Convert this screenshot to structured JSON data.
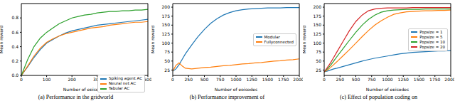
{
  "chart_data": [
    {
      "type": "line",
      "caption": "(a) Performance in the gridworld",
      "x_label": "Number of episodes",
      "y_label": "Mean reward",
      "x": [
        0,
        25,
        50,
        75,
        100,
        125,
        150,
        175,
        200,
        225,
        250,
        275,
        300,
        325,
        350,
        375,
        400,
        425,
        450,
        475,
        500
      ],
      "xlim": [
        0,
        500
      ],
      "xticks": [
        0,
        100,
        200,
        300,
        400,
        500
      ],
      "ylim": [
        0,
        1.0
      ],
      "yticks": [
        {
          "value": 0,
          "label": "0.0"
        },
        0.2,
        0.4,
        0.6,
        0.8
      ],
      "legend": "lower right",
      "series": [
        {
          "name": "Spiking agent AC",
          "color": "#1f77b4",
          "values": [
            0,
            0.12,
            0.25,
            0.36,
            0.45,
            0.5,
            0.55,
            0.59,
            0.62,
            0.64,
            0.66,
            0.68,
            0.7,
            0.71,
            0.72,
            0.73,
            0.74,
            0.75,
            0.76,
            0.77,
            0.78
          ]
        },
        {
          "name": "Neural net AC",
          "color": "#ff7f0e",
          "values": [
            0,
            0.13,
            0.27,
            0.38,
            0.46,
            0.51,
            0.55,
            0.58,
            0.6,
            0.62,
            0.64,
            0.66,
            0.67,
            0.68,
            0.7,
            0.71,
            0.72,
            0.73,
            0.74,
            0.74,
            0.75
          ]
        },
        {
          "name": "Tabular AC",
          "color": "#2ca02c",
          "values": [
            0,
            0.22,
            0.4,
            0.52,
            0.6,
            0.66,
            0.72,
            0.76,
            0.8,
            0.82,
            0.84,
            0.85,
            0.87,
            0.88,
            0.89,
            0.89,
            0.9,
            0.9,
            0.91,
            0.91,
            0.92
          ]
        }
      ]
    },
    {
      "type": "line",
      "caption": "(b) Performance improvement of",
      "x_label": "Number of episodes",
      "y_label": "Mean reward",
      "x": [
        0,
        50,
        100,
        150,
        200,
        300,
        400,
        500,
        600,
        700,
        800,
        900,
        1000,
        1100,
        1200,
        1300,
        1400,
        1500,
        1600,
        1700,
        1800,
        1900,
        2000
      ],
      "xlim": [
        0,
        2000
      ],
      "xticks": [
        0,
        250,
        500,
        750,
        1000,
        1250,
        1500,
        1750,
        2000
      ],
      "ylim": [
        10,
        210
      ],
      "yticks": [
        25,
        50,
        75,
        100,
        125,
        150,
        175,
        200
      ],
      "legend": "center right",
      "series": [
        {
          "name": "Modular",
          "color": "#1f77b4",
          "values": [
            22,
            28,
            40,
            55,
            70,
            95,
            118,
            138,
            155,
            168,
            178,
            185,
            190,
            193,
            195,
            196,
            197,
            198,
            198,
            198,
            199,
            199,
            199
          ]
        },
        {
          "name": "Fullyconnected",
          "color": "#ff7f0e",
          "values": [
            22,
            38,
            45,
            36,
            30,
            28,
            30,
            32,
            33,
            35,
            37,
            38,
            40,
            42,
            43,
            45,
            46,
            48,
            50,
            51,
            53,
            54,
            56
          ]
        }
      ]
    },
    {
      "type": "line",
      "caption": "(c) Effect of population coding on",
      "x_label": "Number of episodes",
      "y_label": "Mean reward",
      "x": [
        0,
        50,
        100,
        150,
        200,
        300,
        400,
        500,
        600,
        700,
        800,
        900,
        1000,
        1100,
        1200,
        1300,
        1400,
        1500,
        1600,
        1700,
        1800,
        1900,
        2000
      ],
      "xlim": [
        0,
        2000
      ],
      "xticks": [
        0,
        250,
        500,
        750,
        1000,
        1250,
        1500,
        1750,
        2000
      ],
      "ylim": [
        10,
        210
      ],
      "yticks": [
        25,
        50,
        75,
        100,
        125,
        150,
        175,
        200
      ],
      "legend": "center right",
      "series": [
        {
          "name": "Popsize = 1",
          "color": "#1f77b4",
          "values": [
            20,
            22,
            25,
            28,
            30,
            35,
            40,
            45,
            50,
            54,
            58,
            61,
            64,
            67,
            70,
            72,
            74,
            75,
            76,
            77,
            78,
            78,
            79
          ]
        },
        {
          "name": "Popsize = 5",
          "color": "#ff7f0e",
          "values": [
            20,
            25,
            32,
            40,
            48,
            65,
            82,
            100,
            118,
            135,
            150,
            162,
            172,
            180,
            184,
            187,
            188,
            189,
            190,
            190,
            191,
            191,
            192
          ]
        },
        {
          "name": "Popsize = 10",
          "color": "#2ca02c",
          "values": [
            20,
            28,
            38,
            50,
            62,
            85,
            108,
            130,
            150,
            166,
            178,
            186,
            190,
            192,
            193,
            194,
            194,
            194,
            195,
            195,
            195,
            195,
            195
          ]
        },
        {
          "name": "Popsize = 20",
          "color": "#d62728",
          "values": [
            20,
            32,
            45,
            60,
            75,
            105,
            135,
            160,
            178,
            190,
            195,
            197,
            198,
            198,
            198,
            198,
            199,
            199,
            199,
            199,
            199,
            199,
            199
          ]
        }
      ]
    }
  ]
}
